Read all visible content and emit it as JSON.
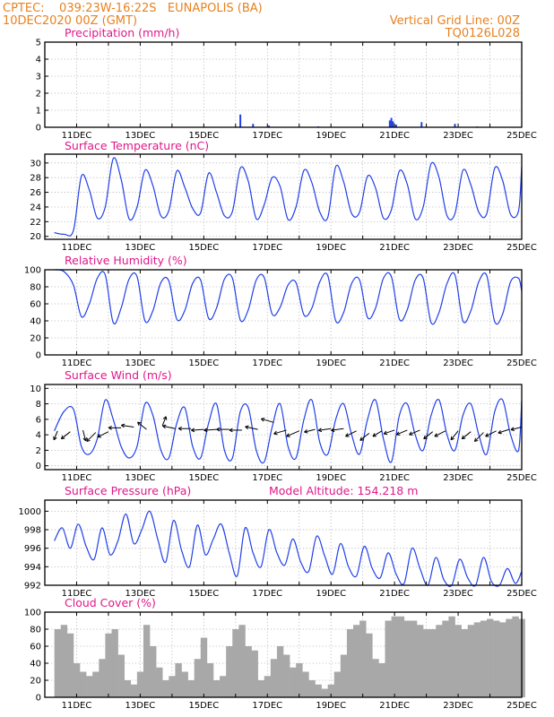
{
  "header": {
    "left_line1": "CPTEC:    039:23W-16:22S   EUNAPOLIS (BA)",
    "left_line2": "10DEC2020 00Z (GMT)",
    "right_line1": "Vertical Grid Line: 00Z",
    "right_line2": "TQ0126L028"
  },
  "colors": {
    "header": "#e8811f",
    "title": "#e0188a",
    "series": "#2040e8",
    "cloud": "#a8a8a8",
    "precip": "#2040e8"
  },
  "chart_data": [
    {
      "type": "bar",
      "title": "Precipitation (mm/h)",
      "ylim": [
        0,
        5
      ],
      "yticks": [
        0,
        1,
        2,
        3,
        4,
        5
      ],
      "x_ticks": [
        "11DEC",
        "13DEC",
        "15DEC",
        "17DEC",
        "19DEC",
        "21DEC",
        "23DEC",
        "25DEC"
      ],
      "x": [
        16.15,
        16.55,
        17.05,
        18.6,
        20.85,
        20.9,
        20.95,
        21.05,
        21.85,
        22.9,
        23.6
      ],
      "values": [
        0.75,
        0.2,
        0.1,
        0.05,
        0.4,
        0.55,
        0.35,
        0.15,
        0.3,
        0.2,
        0.05
      ]
    },
    {
      "type": "line",
      "title": "Surface Temperature (nC)",
      "ylim": [
        19.6,
        31.2
      ],
      "yticks": [
        20,
        22,
        24,
        26,
        28,
        30
      ],
      "x_ticks": [
        "11DEC",
        "13DEC",
        "15DEC",
        "17DEC",
        "19DEC",
        "21DEC",
        "23DEC",
        "25DEC"
      ],
      "x": [
        10.3,
        10.6,
        10.9,
        11.15,
        11.4,
        11.65,
        11.9,
        12.15,
        12.4,
        12.65,
        12.9,
        13.15,
        13.4,
        13.65,
        13.9,
        14.15,
        14.4,
        14.65,
        14.9,
        15.15,
        15.4,
        15.65,
        15.9,
        16.15,
        16.4,
        16.65,
        16.9,
        17.15,
        17.4,
        17.65,
        17.9,
        18.15,
        18.4,
        18.65,
        18.9,
        19.15,
        19.4,
        19.65,
        19.9,
        20.15,
        20.4,
        20.65,
        20.9,
        21.15,
        21.4,
        21.65,
        21.9,
        22.15,
        22.4,
        22.65,
        22.9,
        23.15,
        23.4,
        23.65,
        23.9,
        24.15,
        24.4,
        24.65,
        24.9,
        25.0
      ],
      "values": [
        20.5,
        20.3,
        20.8,
        28.2,
        26.3,
        22.5,
        24.0,
        30.6,
        27.8,
        22.4,
        24.0,
        29.0,
        26.9,
        22.8,
        23.5,
        28.9,
        26.7,
        23.8,
        23.2,
        28.6,
        26.0,
        22.8,
        23.4,
        29.3,
        27.5,
        22.4,
        24.3,
        28.0,
        26.8,
        22.3,
        24.0,
        29.0,
        27.3,
        23.3,
        22.6,
        29.5,
        27.4,
        23.1,
        23.3,
        28.2,
        26.6,
        22.5,
        23.6,
        28.9,
        27.1,
        22.4,
        24.0,
        29.9,
        28.0,
        22.8,
        23.1,
        29.0,
        27.0,
        23.3,
        23.1,
        29.3,
        27.6,
        23.0,
        23.5,
        29.5
      ]
    },
    {
      "type": "line",
      "title": "Relative Humidity (%)",
      "ylim": [
        0,
        100
      ],
      "yticks": [
        0,
        20,
        40,
        60,
        80,
        100
      ],
      "x_ticks": [
        "11DEC",
        "13DEC",
        "15DEC",
        "17DEC",
        "19DEC",
        "21DEC",
        "23DEC",
        "25DEC"
      ],
      "x": [
        10.3,
        10.6,
        10.9,
        11.15,
        11.4,
        11.65,
        11.9,
        12.15,
        12.4,
        12.65,
        12.9,
        13.15,
        13.4,
        13.65,
        13.9,
        14.15,
        14.4,
        14.65,
        14.9,
        15.15,
        15.4,
        15.65,
        15.9,
        16.15,
        16.4,
        16.65,
        16.9,
        17.15,
        17.4,
        17.65,
        17.9,
        18.15,
        18.4,
        18.65,
        18.9,
        19.15,
        19.4,
        19.65,
        19.9,
        20.15,
        20.4,
        20.65,
        20.9,
        21.15,
        21.4,
        21.65,
        21.9,
        22.15,
        22.4,
        22.65,
        22.9,
        23.15,
        23.4,
        23.65,
        23.9,
        24.15,
        24.4,
        24.65,
        24.9,
        25.0
      ],
      "values": [
        100,
        98,
        82,
        45,
        60,
        90,
        94,
        38,
        55,
        89,
        92,
        40,
        52,
        85,
        87,
        42,
        52,
        84,
        88,
        43,
        55,
        89,
        90,
        41,
        53,
        88,
        91,
        48,
        56,
        82,
        85,
        47,
        55,
        86,
        93,
        40,
        50,
        84,
        88,
        44,
        55,
        90,
        92,
        42,
        53,
        88,
        90,
        38,
        50,
        84,
        94,
        40,
        52,
        86,
        93,
        39,
        48,
        86,
        90,
        75
      ]
    },
    {
      "type": "line",
      "title": "Surface Wind (m/s)",
      "ylim": [
        -0.5,
        10.5
      ],
      "yticks": [
        0,
        2,
        4,
        6,
        8,
        10
      ],
      "x_ticks": [
        "11DEC",
        "13DEC",
        "15DEC",
        "17DEC",
        "19DEC",
        "21DEC",
        "23DEC",
        "25DEC"
      ],
      "x": [
        10.3,
        10.6,
        10.9,
        11.15,
        11.4,
        11.65,
        11.9,
        12.15,
        12.4,
        12.65,
        12.9,
        13.15,
        13.4,
        13.65,
        13.9,
        14.15,
        14.4,
        14.65,
        14.9,
        15.15,
        15.4,
        15.65,
        15.9,
        16.15,
        16.4,
        16.65,
        16.9,
        17.15,
        17.4,
        17.65,
        17.9,
        18.15,
        18.4,
        18.65,
        18.9,
        19.15,
        19.4,
        19.65,
        19.9,
        20.15,
        20.4,
        20.65,
        20.9,
        21.15,
        21.4,
        21.65,
        21.9,
        22.15,
        22.4,
        22.65,
        22.9,
        23.15,
        23.4,
        23.65,
        23.9,
        24.15,
        24.4,
        24.65,
        24.9,
        25.0
      ],
      "values": [
        4.5,
        7.0,
        7.3,
        2.5,
        1.5,
        3.5,
        8.5,
        6.0,
        2.5,
        1.0,
        2.5,
        8.0,
        6.5,
        2.0,
        1.0,
        5.5,
        7.5,
        2.5,
        1.0,
        5.5,
        8.0,
        2.0,
        1.0,
        7.0,
        7.5,
        2.0,
        0.5,
        5.0,
        8.0,
        2.5,
        1.0,
        6.0,
        8.5,
        3.0,
        1.5,
        6.0,
        8.0,
        4.0,
        1.5,
        6.0,
        8.5,
        3.5,
        0.5,
        6.5,
        8.0,
        4.0,
        2.0,
        6.5,
        8.5,
        4.0,
        2.0,
        6.5,
        8.0,
        4.0,
        1.5,
        7.0,
        8.5,
        4.0,
        2.0,
        8.5
      ]
    },
    {
      "type": "line",
      "title": "Surface Pressure (hPa)",
      "annotation": "Model Altitude: 154.218 m",
      "ylim": [
        992,
        1001.2
      ],
      "yticks": [
        992,
        994,
        996,
        998,
        1000
      ],
      "x_ticks": [
        "11DEC",
        "13DEC",
        "15DEC",
        "17DEC",
        "19DEC",
        "21DEC",
        "23DEC",
        "25DEC"
      ],
      "x": [
        10.3,
        10.55,
        10.8,
        11.05,
        11.3,
        11.55,
        11.8,
        12.05,
        12.3,
        12.55,
        12.8,
        13.05,
        13.3,
        13.55,
        13.8,
        14.05,
        14.3,
        14.55,
        14.8,
        15.05,
        15.3,
        15.55,
        15.8,
        16.05,
        16.3,
        16.55,
        16.8,
        17.05,
        17.3,
        17.55,
        17.8,
        18.05,
        18.3,
        18.55,
        18.8,
        19.05,
        19.3,
        19.55,
        19.8,
        20.05,
        20.3,
        20.55,
        20.8,
        21.05,
        21.3,
        21.55,
        21.8,
        22.05,
        22.3,
        22.55,
        22.8,
        23.05,
        23.3,
        23.55,
        23.8,
        24.05,
        24.3,
        24.55,
        24.8,
        25.0
      ],
      "values": [
        996.8,
        998.2,
        996.0,
        998.6,
        996.2,
        994.8,
        998.2,
        995.3,
        996.8,
        999.7,
        996.5,
        998.0,
        1000.0,
        997.0,
        994.5,
        999.0,
        995.8,
        994.0,
        998.5,
        995.3,
        997.0,
        998.6,
        995.5,
        993.0,
        998.2,
        995.5,
        994.0,
        998.0,
        995.5,
        994.2,
        997.0,
        994.5,
        993.5,
        997.3,
        995.2,
        993.2,
        996.5,
        994.0,
        993.0,
        996.2,
        993.8,
        992.8,
        995.5,
        993.2,
        992.2,
        996.0,
        993.8,
        992.0,
        995.0,
        992.6,
        991.8,
        994.8,
        992.8,
        992.0,
        995.0,
        992.4,
        991.9,
        993.8,
        992.2,
        993.5
      ]
    },
    {
      "type": "bar",
      "title": "Cloud Cover (%)",
      "ylim": [
        0,
        100
      ],
      "yticks": [
        0,
        20,
        40,
        60,
        80,
        100
      ],
      "x_ticks": [
        "11DEC",
        "13DEC",
        "15DEC",
        "17DEC",
        "19DEC",
        "21DEC",
        "23DEC",
        "25DEC"
      ],
      "x": [
        10.3,
        10.5,
        10.7,
        10.9,
        11.1,
        11.3,
        11.5,
        11.7,
        11.9,
        12.1,
        12.3,
        12.5,
        12.7,
        12.9,
        13.1,
        13.3,
        13.5,
        13.7,
        13.9,
        14.1,
        14.3,
        14.5,
        14.7,
        14.9,
        15.1,
        15.3,
        15.5,
        15.7,
        15.9,
        16.1,
        16.3,
        16.5,
        16.7,
        16.9,
        17.1,
        17.3,
        17.5,
        17.7,
        17.9,
        18.1,
        18.3,
        18.5,
        18.7,
        18.9,
        19.1,
        19.3,
        19.5,
        19.7,
        19.9,
        20.1,
        20.3,
        20.5,
        20.7,
        20.9,
        21.1,
        21.3,
        21.5,
        21.7,
        21.9,
        22.1,
        22.3,
        22.5,
        22.7,
        22.9,
        23.1,
        23.3,
        23.5,
        23.7,
        23.9,
        24.1,
        24.3,
        24.5,
        24.7,
        24.9
      ],
      "values": [
        80,
        85,
        75,
        40,
        30,
        25,
        30,
        45,
        75,
        80,
        50,
        20,
        15,
        30,
        85,
        60,
        35,
        20,
        25,
        40,
        30,
        20,
        45,
        70,
        40,
        20,
        25,
        60,
        80,
        85,
        60,
        55,
        20,
        25,
        45,
        60,
        50,
        35,
        40,
        30,
        20,
        15,
        10,
        15,
        30,
        50,
        80,
        85,
        90,
        75,
        45,
        40,
        90,
        95,
        95,
        90,
        90,
        85,
        80,
        80,
        85,
        90,
        95,
        85,
        80,
        85,
        88,
        90,
        92,
        90,
        88,
        92,
        95,
        92
      ]
    }
  ]
}
